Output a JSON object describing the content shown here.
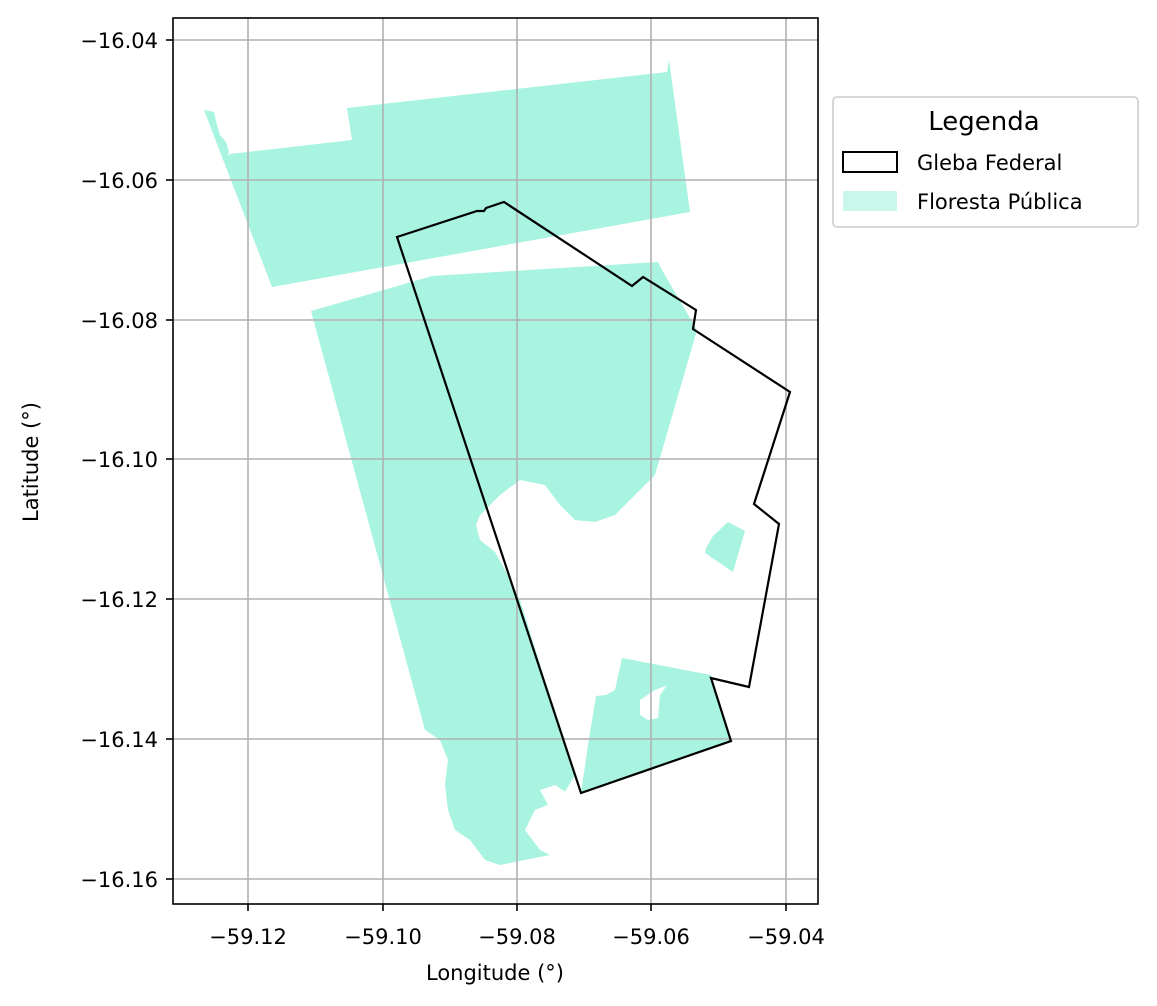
{
  "map": {
    "x_axis": {
      "label": "Longitude (°)",
      "ticks": [
        "−59.12",
        "−59.10",
        "−59.08",
        "−59.06",
        "−59.04"
      ]
    },
    "y_axis": {
      "label": "Latitude (°)",
      "ticks": [
        "−16.04",
        "−16.06",
        "−16.08",
        "−16.10",
        "−16.12",
        "−16.14",
        "−16.16"
      ]
    },
    "grid": true,
    "legend": {
      "title": "Legenda",
      "placement": "upper-right-outside",
      "items": [
        {
          "label": "Gleba Federal",
          "style": "outline",
          "color": "#000000"
        },
        {
          "label": "Floresta Pública",
          "style": "fill",
          "color": "#a8f4e0"
        }
      ]
    },
    "colors": {
      "forest_fill": "#a8f4e0",
      "gleba_outline": "#000000",
      "grid": "#b0b0b0"
    }
  }
}
